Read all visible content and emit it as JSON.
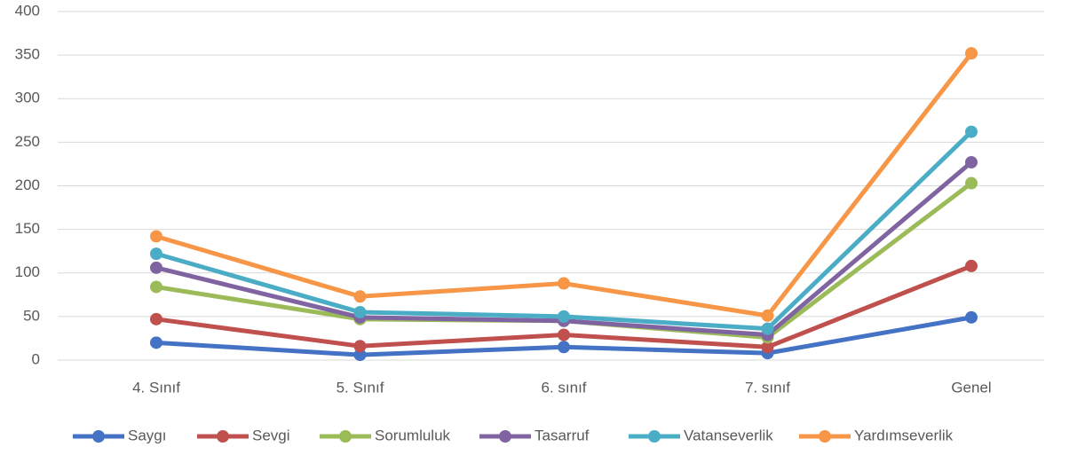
{
  "chart_data": {
    "type": "line",
    "categories": [
      "4. Sınıf",
      "5. Sınıf",
      "6. sınıf",
      "7. sınıf",
      "Genel"
    ],
    "series": [
      {
        "name": "Saygı",
        "color": "#4472c4",
        "values": [
          20,
          6,
          15,
          8,
          49
        ]
      },
      {
        "name": "Sevgi",
        "color": "#c0504d",
        "values": [
          47,
          16,
          29,
          15,
          108
        ]
      },
      {
        "name": "Sorumluluk",
        "color": "#9bbb59",
        "values": [
          84,
          47,
          45,
          26,
          203
        ]
      },
      {
        "name": "Tasarruf",
        "color": "#8064a2",
        "values": [
          106,
          49,
          45,
          29,
          227
        ]
      },
      {
        "name": "Vatanseverlik",
        "color": "#4bacc6",
        "values": [
          122,
          55,
          50,
          36,
          262
        ]
      },
      {
        "name": "Yardımseverlik",
        "color": "#f79646",
        "values": [
          142,
          73,
          88,
          51,
          352
        ]
      }
    ],
    "ylim": [
      0,
      400
    ],
    "yticks": [
      0,
      50,
      100,
      150,
      200,
      250,
      300,
      350,
      400
    ],
    "grid": true,
    "legend": "bottom"
  }
}
